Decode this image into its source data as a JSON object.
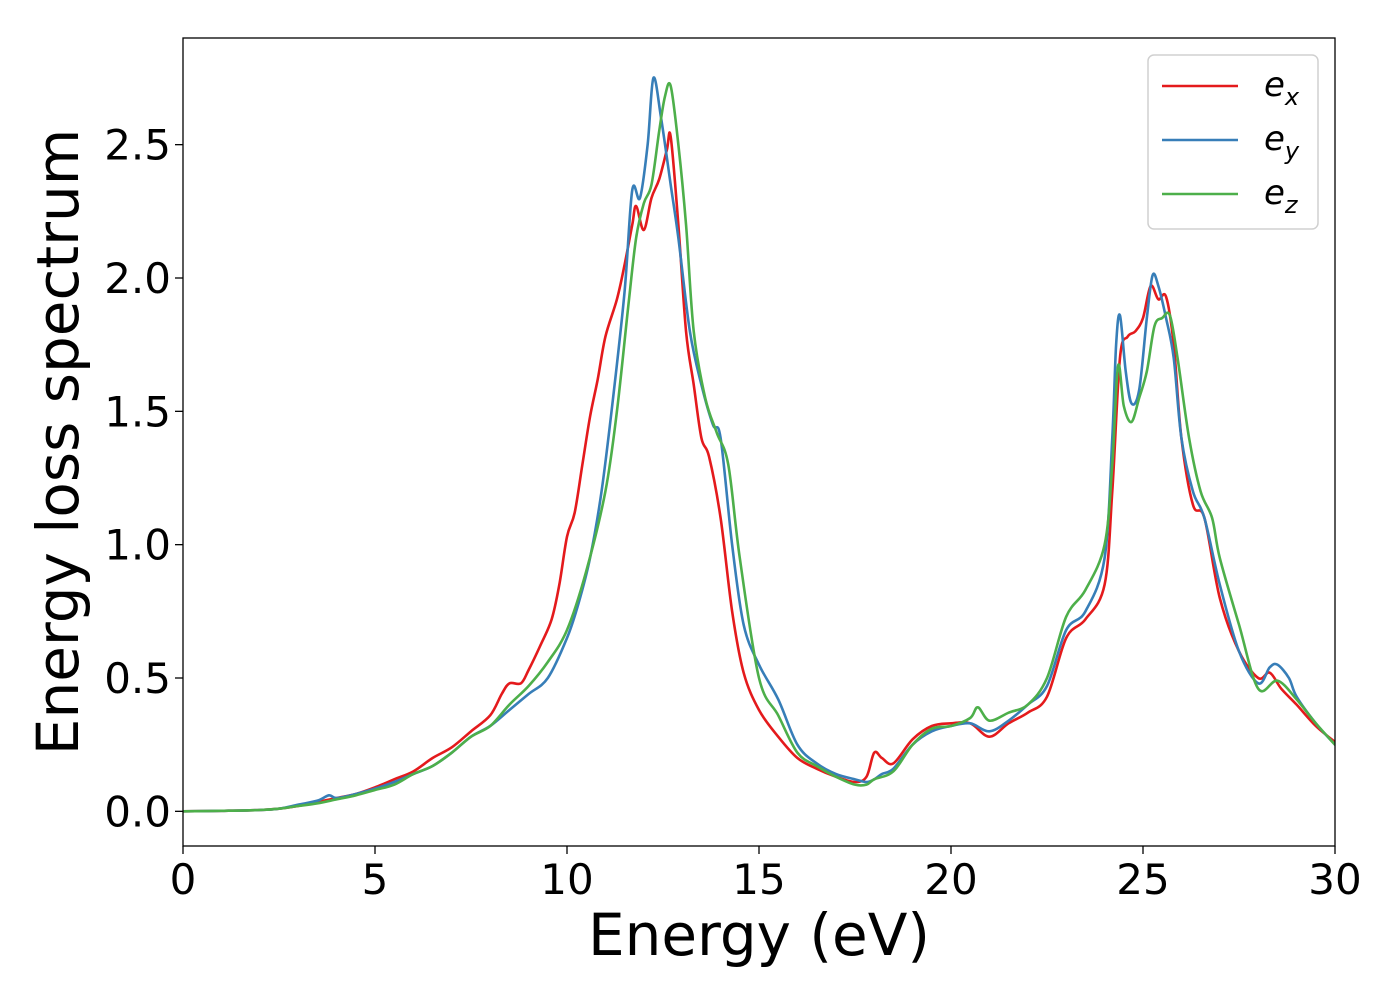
{
  "chart_data": {
    "type": "line",
    "title": "",
    "xlabel": "Energy (eV)",
    "ylabel": "Energy loss spectrum",
    "xlim": [
      0,
      30
    ],
    "ylim": [
      -0.13,
      2.9
    ],
    "xticks": [
      0,
      5,
      10,
      15,
      20,
      25,
      30
    ],
    "xtick_labels": [
      "0",
      "5",
      "10",
      "15",
      "20",
      "25",
      "30"
    ],
    "yticks": [
      0.0,
      0.5,
      1.0,
      1.5,
      2.0,
      2.5
    ],
    "ytick_labels": [
      "0.0",
      "0.5",
      "1.0",
      "1.5",
      "2.0",
      "2.5"
    ],
    "grid": false,
    "legend_position": "top-right",
    "series": [
      {
        "name": "e_x",
        "legend_main": "e",
        "legend_sub": "x",
        "color": "#e41a1c",
        "x": [
          0,
          1,
          2,
          2.5,
          3,
          3.5,
          4,
          4.5,
          5,
          5.5,
          6,
          6.5,
          7,
          7.5,
          8,
          8.3,
          8.5,
          8.8,
          9,
          9.3,
          9.6,
          9.8,
          10,
          10.2,
          10.4,
          10.6,
          10.8,
          11,
          11.3,
          11.5,
          11.7,
          11.8,
          12,
          12.2,
          12.4,
          12.6,
          12.7,
          12.9,
          13.1,
          13.3,
          13.5,
          13.7,
          14,
          14.3,
          14.6,
          15,
          15.5,
          16,
          16.5,
          17,
          17.5,
          17.8,
          18,
          18.2,
          18.5,
          19,
          19.5,
          20,
          20.5,
          21,
          21.5,
          22,
          22.5,
          23,
          23.5,
          24,
          24.2,
          24.4,
          24.6,
          24.8,
          25,
          25.2,
          25.4,
          25.6,
          25.8,
          26,
          26.3,
          26.6,
          27,
          27.5,
          28,
          28.3,
          28.6,
          29,
          29.5,
          30
        ],
        "y": [
          0,
          0.002,
          0.005,
          0.01,
          0.02,
          0.035,
          0.05,
          0.065,
          0.09,
          0.12,
          0.15,
          0.2,
          0.24,
          0.3,
          0.36,
          0.44,
          0.48,
          0.48,
          0.53,
          0.62,
          0.72,
          0.85,
          1.03,
          1.12,
          1.3,
          1.48,
          1.62,
          1.78,
          1.92,
          2.05,
          2.2,
          2.27,
          2.18,
          2.3,
          2.37,
          2.48,
          2.53,
          2.2,
          1.8,
          1.6,
          1.4,
          1.33,
          1.1,
          0.75,
          0.52,
          0.38,
          0.28,
          0.2,
          0.16,
          0.13,
          0.11,
          0.13,
          0.22,
          0.2,
          0.18,
          0.27,
          0.32,
          0.33,
          0.33,
          0.28,
          0.33,
          0.37,
          0.43,
          0.65,
          0.72,
          0.85,
          1.2,
          1.7,
          1.78,
          1.8,
          1.85,
          1.97,
          1.92,
          1.93,
          1.75,
          1.4,
          1.15,
          1.1,
          0.8,
          0.6,
          0.5,
          0.52,
          0.46,
          0.4,
          0.32,
          0.26
        ]
      },
      {
        "name": "e_y",
        "legend_main": "e",
        "legend_sub": "y",
        "color": "#377eb8",
        "x": [
          0,
          1,
          2,
          2.5,
          3,
          3.5,
          3.8,
          4,
          4.5,
          5,
          5.5,
          6,
          6.5,
          7,
          7.5,
          8,
          8.5,
          9,
          9.5,
          10,
          10.3,
          10.6,
          10.9,
          11.2,
          11.5,
          11.7,
          11.9,
          12.1,
          12.25,
          12.45,
          12.7,
          12.9,
          13.2,
          13.5,
          13.8,
          14,
          14.3,
          14.6,
          15,
          15.5,
          16,
          16.5,
          17,
          17.5,
          17.8,
          18,
          18.2,
          18.5,
          19,
          19.5,
          20,
          20.5,
          21,
          21.5,
          22,
          22.5,
          23,
          23.5,
          24,
          24.2,
          24.3,
          24.4,
          24.55,
          24.7,
          24.9,
          25.1,
          25.25,
          25.4,
          25.6,
          25.8,
          26,
          26.3,
          26.6,
          27,
          27.5,
          28,
          28.3,
          28.5,
          28.8,
          29,
          29.5,
          30
        ],
        "y": [
          0,
          0.002,
          0.005,
          0.01,
          0.025,
          0.04,
          0.06,
          0.05,
          0.065,
          0.085,
          0.11,
          0.14,
          0.17,
          0.22,
          0.28,
          0.32,
          0.38,
          0.44,
          0.5,
          0.65,
          0.78,
          0.95,
          1.2,
          1.55,
          1.95,
          2.33,
          2.3,
          2.5,
          2.75,
          2.6,
          2.35,
          2.15,
          1.8,
          1.6,
          1.45,
          1.4,
          1.0,
          0.7,
          0.55,
          0.42,
          0.25,
          0.18,
          0.14,
          0.12,
          0.11,
          0.12,
          0.14,
          0.16,
          0.25,
          0.3,
          0.32,
          0.33,
          0.3,
          0.34,
          0.4,
          0.47,
          0.68,
          0.75,
          0.95,
          1.4,
          1.75,
          1.86,
          1.65,
          1.53,
          1.58,
          1.85,
          2.01,
          1.97,
          1.85,
          1.7,
          1.4,
          1.2,
          1.1,
          0.85,
          0.6,
          0.48,
          0.54,
          0.55,
          0.5,
          0.43,
          0.33,
          0.25
        ]
      },
      {
        "name": "e_z",
        "legend_main": "e",
        "legend_sub": "z",
        "color": "#4daf4a",
        "x": [
          0,
          1,
          2,
          2.5,
          3,
          3.5,
          4,
          4.5,
          5,
          5.5,
          6,
          6.5,
          7,
          7.5,
          8,
          8.5,
          9,
          9.5,
          10,
          10.5,
          11,
          11.3,
          11.6,
          11.8,
          12,
          12.2,
          12.4,
          12.55,
          12.7,
          12.9,
          13.1,
          13.3,
          13.6,
          13.9,
          14.2,
          14.5,
          15,
          15.5,
          16,
          16.5,
          17,
          17.5,
          17.8,
          18,
          18.5,
          19,
          19.5,
          20,
          20.5,
          20.7,
          21,
          21.5,
          22,
          22.5,
          23,
          23.5,
          24,
          24.2,
          24.35,
          24.5,
          24.7,
          24.9,
          25.1,
          25.3,
          25.5,
          25.7,
          25.9,
          26.2,
          26.5,
          26.8,
          27,
          27.5,
          28,
          28.5,
          29,
          29.5,
          30
        ],
        "y": [
          0,
          0.002,
          0.005,
          0.01,
          0.02,
          0.03,
          0.045,
          0.06,
          0.08,
          0.1,
          0.14,
          0.17,
          0.22,
          0.28,
          0.32,
          0.4,
          0.47,
          0.56,
          0.68,
          0.9,
          1.2,
          1.5,
          1.9,
          2.15,
          2.28,
          2.35,
          2.55,
          2.68,
          2.72,
          2.5,
          2.2,
          1.8,
          1.55,
          1.42,
          1.3,
          0.95,
          0.5,
          0.36,
          0.22,
          0.17,
          0.13,
          0.1,
          0.1,
          0.12,
          0.15,
          0.25,
          0.31,
          0.32,
          0.35,
          0.39,
          0.34,
          0.37,
          0.4,
          0.5,
          0.73,
          0.83,
          1.0,
          1.3,
          1.67,
          1.52,
          1.46,
          1.55,
          1.65,
          1.82,
          1.85,
          1.86,
          1.7,
          1.4,
          1.2,
          1.1,
          0.95,
          0.7,
          0.46,
          0.49,
          0.42,
          0.33,
          0.25
        ]
      }
    ]
  }
}
